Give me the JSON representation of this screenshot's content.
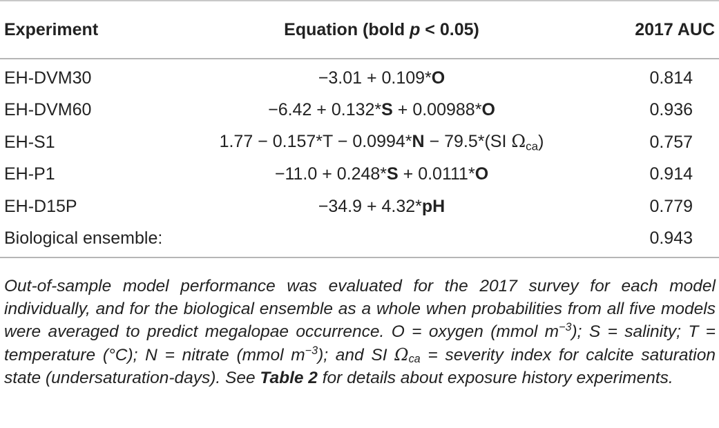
{
  "table": {
    "headers": {
      "experiment": "Experiment",
      "equation": "Equation (bold ",
      "equation_p": "p",
      "equation_rest": " < 0.05)",
      "auc": "2017 AUC"
    },
    "rows": [
      {
        "experiment": "EH-DVM30",
        "eq": {
          "t1": "−3.01 + 0.109*",
          "b1": "O"
        },
        "auc": "0.814"
      },
      {
        "experiment": "EH-DVM60",
        "eq": {
          "t1": "−6.42 + 0.132*",
          "b1": "S",
          "t2": " + 0.00988*",
          "b2": "O"
        },
        "auc": "0.936"
      },
      {
        "experiment": "EH-S1",
        "eq": {
          "t1": "1.77 − 0.157*T − 0.0994*",
          "b1": "N",
          "t2": " − 79.5*(SI ",
          "omega": "Ω",
          "omega_sub": "ca",
          "t3": ")"
        },
        "auc": "0.757"
      },
      {
        "experiment": "EH-P1",
        "eq": {
          "t1": "−11.0 + 0.248*",
          "b1": "S",
          "t2": " + 0.0111*",
          "b2": "O"
        },
        "auc": "0.914"
      },
      {
        "experiment": "EH-D15P",
        "eq": {
          "t1": "−34.9 + 4.32*",
          "b1": "pH"
        },
        "auc": "0.779"
      },
      {
        "experiment": "Biological ensemble:",
        "auc": "0.943"
      }
    ]
  },
  "footnote": {
    "p1": "Out-of-sample model performance was evaluated for the 2017 survey for each model individually, and for the biological ensemble as a whole when probabilities from all five models were averaged to predict megalopae occurrence. O = oxygen (mmol m",
    "exp1": "−3",
    "p2": "); S = salinity; T = temperature (°C); N = nitrate (mmol m",
    "exp2": "−3",
    "p3": "); and SI ",
    "omega": "Ω",
    "omega_sub": "ca",
    "p4": " = severity index for calcite saturation state (undersaturation-days). See ",
    "table_ref": "Table 2",
    "p5": " for details about exposure history experiments."
  }
}
